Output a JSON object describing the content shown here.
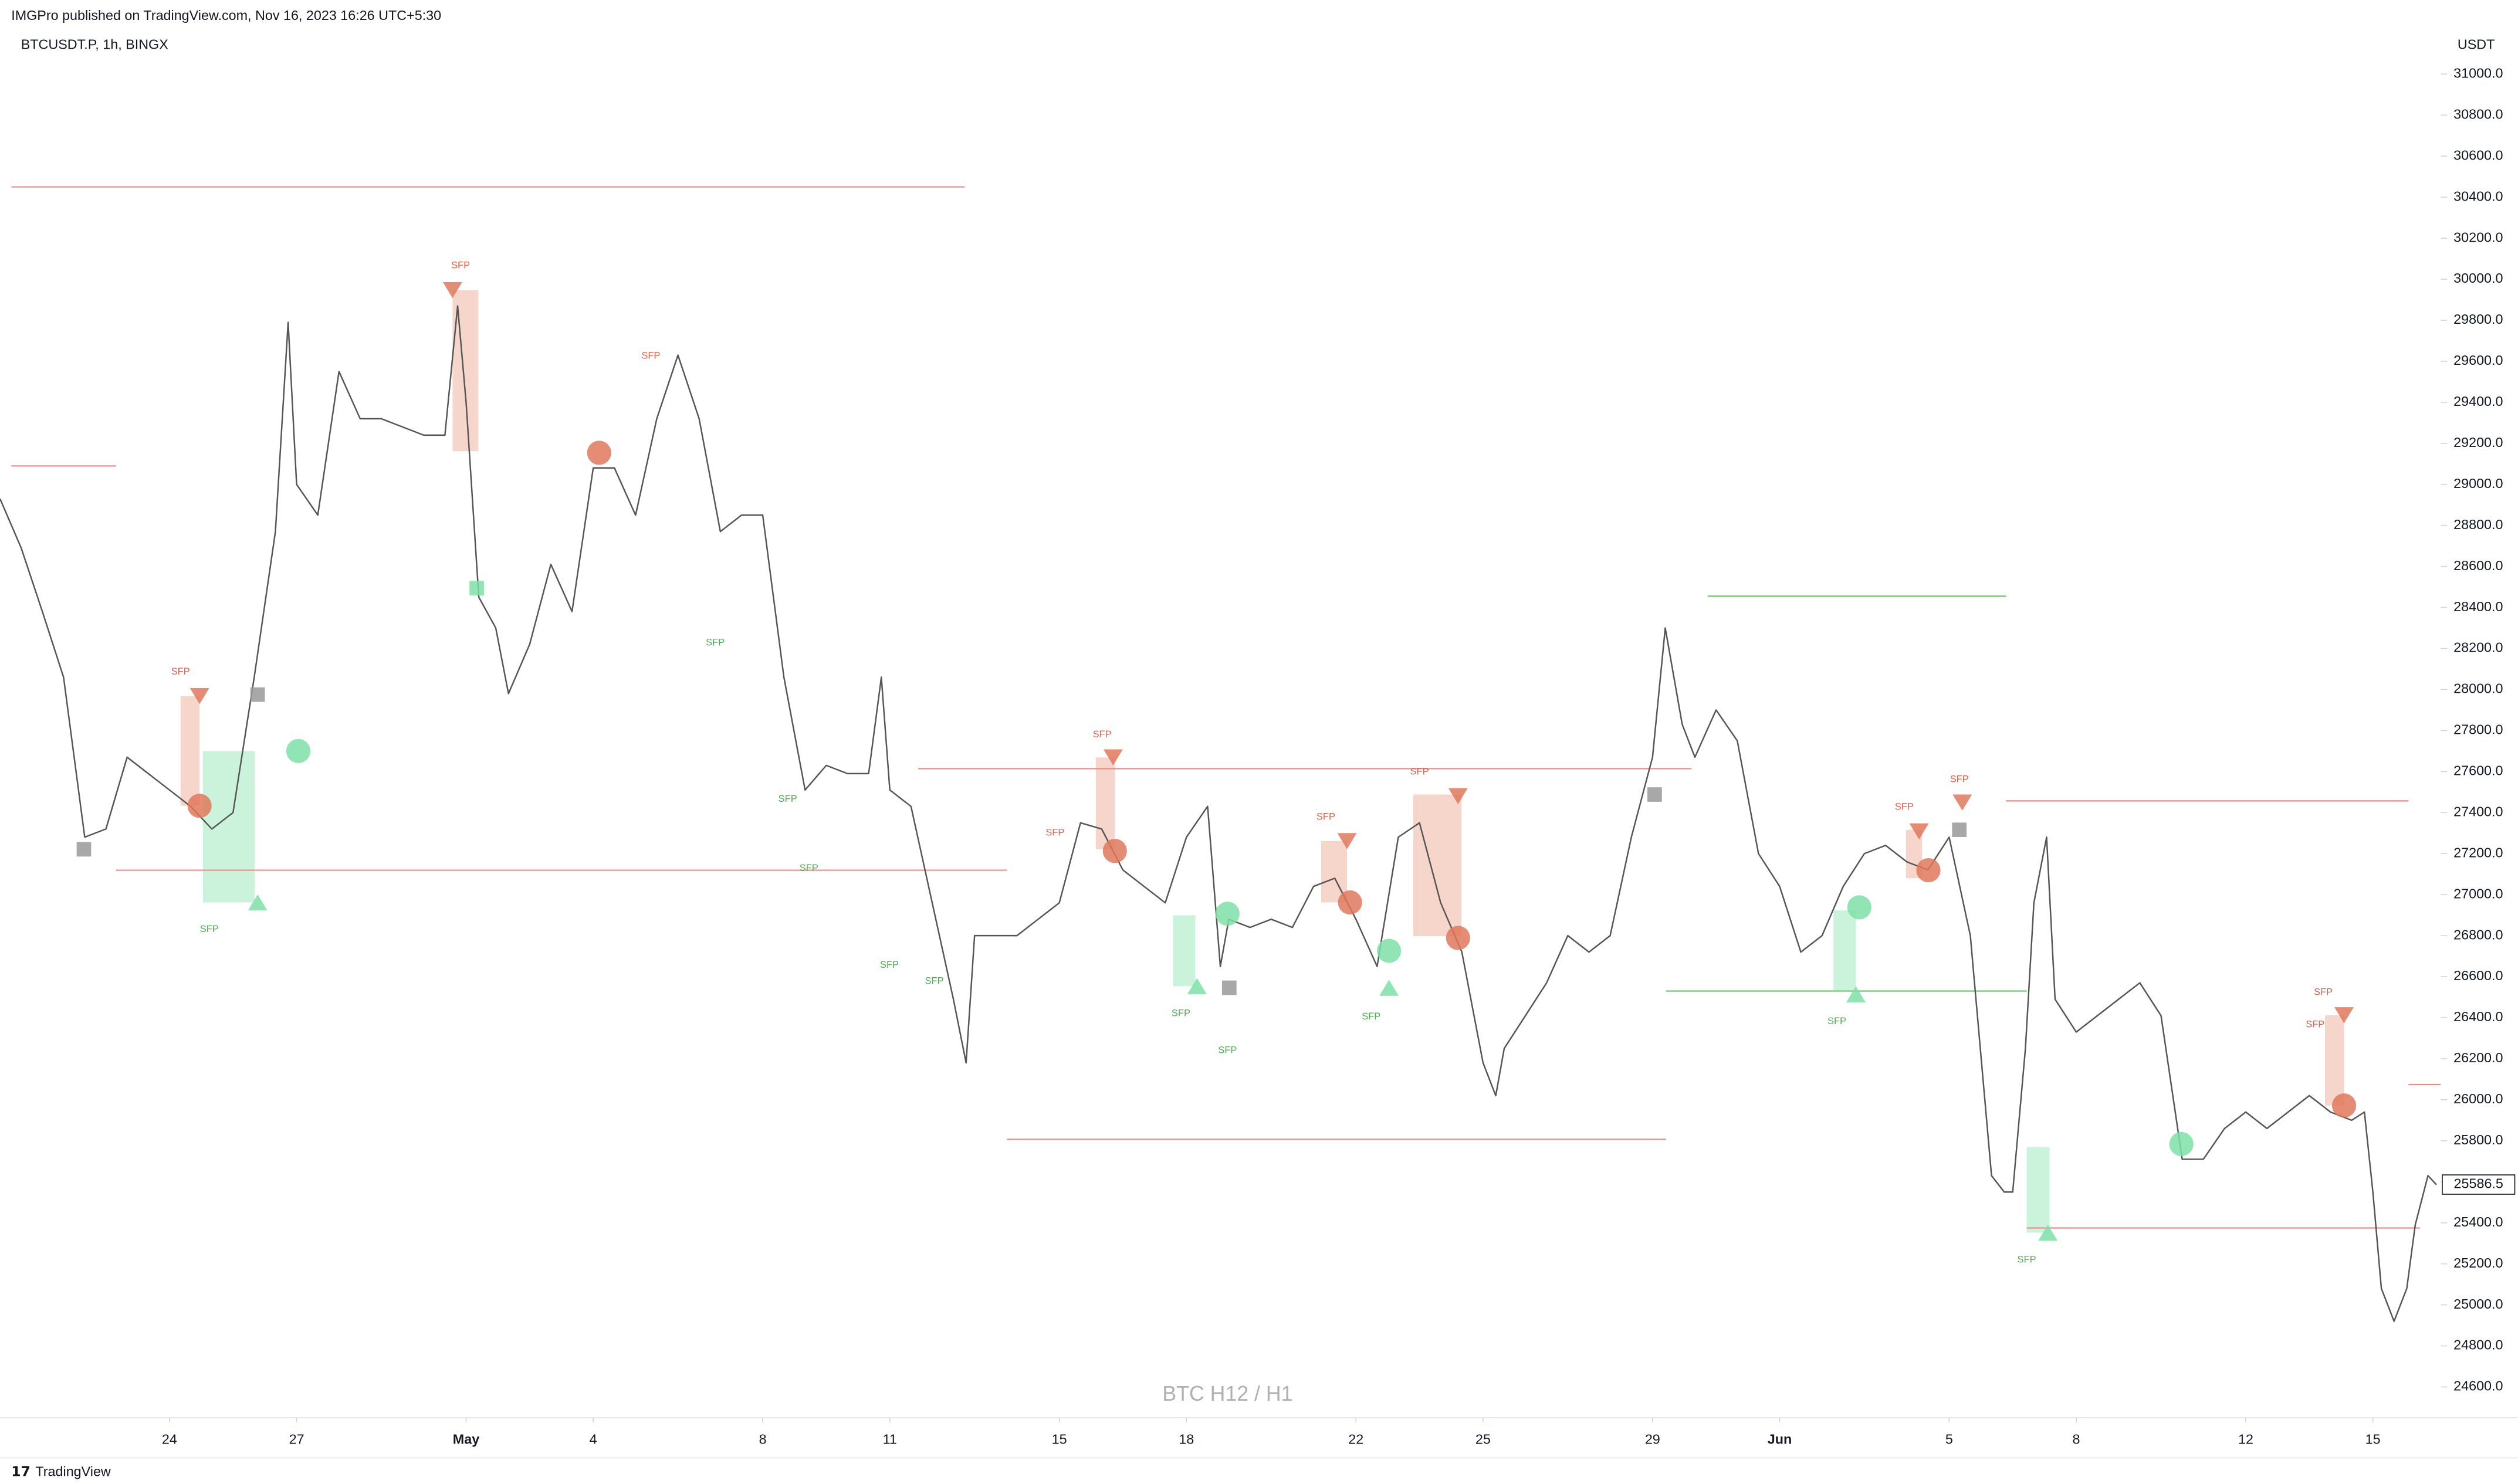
{
  "header": {
    "published": "IMGPro published on TradingView.com, Nov 16, 2023 16:26 UTC+5:30",
    "symbol": "BTCUSDT.P, 1h, BINGX"
  },
  "footer": "TradingView",
  "chart_data": {
    "type": "line",
    "watermark": "BTC H12 / H1",
    "currency": "USDT",
    "color": "#555555",
    "xlim": [
      20,
      77.6
    ],
    "ylim": [
      24450,
      31360
    ],
    "xticks": [
      24,
      27,
      {
        "value": 31,
        "label": "May"
      },
      {
        "value": 34,
        "label": "4"
      },
      {
        "value": 38,
        "label": "8"
      },
      {
        "value": 41,
        "label": "11"
      },
      {
        "value": 45,
        "label": "15"
      },
      {
        "value": 48,
        "label": "18"
      },
      {
        "value": 52,
        "label": "22"
      },
      {
        "value": 55,
        "label": "25"
      },
      {
        "value": 59,
        "label": "29"
      },
      {
        "value": 62,
        "label": "Jun"
      },
      {
        "value": 66,
        "label": "5"
      },
      {
        "value": 69,
        "label": "8"
      },
      {
        "value": 73,
        "label": "12"
      },
      {
        "value": 76,
        "label": "15"
      }
    ],
    "yticks": [
      {
        "value": 31000,
        "label": "31000.0"
      },
      {
        "value": 30800,
        "label": "30800.0"
      },
      {
        "value": 30600,
        "label": "30600.0"
      },
      {
        "value": 30400,
        "label": "30400.0"
      },
      {
        "value": 30200,
        "label": "30200.0"
      },
      {
        "value": 30000,
        "label": "30000.0"
      },
      {
        "value": 29800,
        "label": "29800.0"
      },
      {
        "value": 29600,
        "label": "29600.0"
      },
      {
        "value": 29400,
        "label": "29400.0"
      },
      {
        "value": 29200,
        "label": "29200.0"
      },
      {
        "value": 29000,
        "label": "29000.0"
      },
      {
        "value": 28800,
        "label": "28800.0"
      },
      {
        "value": 28600,
        "label": "28600.0"
      },
      {
        "value": 28400,
        "label": "28400.0"
      },
      {
        "value": 28200,
        "label": "28200.0"
      },
      {
        "value": 28000,
        "label": "28000.0"
      },
      {
        "value": 27800,
        "label": "27800.0"
      },
      {
        "value": 27600,
        "label": "27600.0"
      },
      {
        "value": 27400,
        "label": "27400.0"
      },
      {
        "value": 27200,
        "label": "27200.0"
      },
      {
        "value": 27000,
        "label": "27000.0"
      },
      {
        "value": 26800,
        "label": "26800.0"
      },
      {
        "value": 26600,
        "label": "26600.0"
      },
      {
        "value": 26400,
        "label": "26400.0"
      },
      {
        "value": 26200,
        "label": "26200.0"
      },
      {
        "value": 26000,
        "label": "26000.0"
      },
      {
        "value": 25800,
        "label": "25800.0"
      },
      {
        "value": 25600,
        "label": "25600.0"
      },
      {
        "value": 25400,
        "label": "25400.0"
      },
      {
        "value": 25200,
        "label": "25200.0"
      },
      {
        "value": 25000,
        "label": "25000.0"
      },
      {
        "value": 24800,
        "label": "24800.0"
      },
      {
        "value": 24600,
        "label": "24600.0"
      }
    ],
    "x": [
      20,
      20.5,
      21,
      21.5,
      22,
      22.5,
      23,
      23.5,
      24,
      24.5,
      25,
      25.5,
      26,
      26.5,
      26.8,
      27,
      27.5,
      28,
      28.5,
      29,
      29.5,
      30,
      30.5,
      30.8,
      31,
      31.3,
      31.7,
      32,
      32.5,
      33,
      33.5,
      34,
      34.5,
      35,
      35.5,
      36,
      36.5,
      37,
      37.5,
      38,
      38.5,
      39,
      39.5,
      40,
      40.5,
      40.8,
      41,
      41.5,
      42,
      42.5,
      42.8,
      43,
      43.5,
      44,
      44.5,
      45,
      45.5,
      46,
      46.5,
      47,
      47.5,
      48,
      48.5,
      48.8,
      49,
      49.5,
      50,
      50.5,
      51,
      51.5,
      52,
      52.5,
      53,
      53.5,
      54,
      54.5,
      55,
      55.3,
      55.5,
      56,
      56.5,
      57,
      57.5,
      58,
      58.5,
      59,
      59.3,
      59.7,
      60,
      60.5,
      61,
      61.5,
      62,
      62.5,
      63,
      63.5,
      64,
      64.5,
      65,
      65.5,
      66,
      66.5,
      67,
      67.3,
      67.5,
      67.8,
      68,
      68.3,
      68.5,
      69,
      69.5,
      70,
      70.5,
      71,
      71.5,
      72,
      72.5,
      73,
      73.5,
      74,
      74.5,
      75,
      75.5,
      75.8,
      76,
      76.2,
      76.5,
      76.8,
      77,
      77.3,
      77.5
    ],
    "values": [
      28930,
      28690,
      28380,
      28060,
      27280,
      27320,
      27670,
      27590,
      27510,
      27430,
      27320,
      27400,
      28060,
      28770,
      29790,
      29000,
      28850,
      29550,
      29320,
      29320,
      29280,
      29240,
      29240,
      29870,
      29400,
      28450,
      28300,
      27980,
      28220,
      28610,
      28380,
      29080,
      29080,
      28850,
      29320,
      29630,
      29320,
      28770,
      28850,
      28850,
      28060,
      27510,
      27630,
      27590,
      27590,
      28060,
      27510,
      27430,
      26960,
      26490,
      26180,
      26800,
      26800,
      26800,
      26880,
      26960,
      27350,
      27320,
      27120,
      27040,
      26960,
      27280,
      27430,
      26650,
      26880,
      26840,
      26880,
      26840,
      27040,
      27080,
      26880,
      26650,
      27280,
      27350,
      26960,
      26720,
      26180,
      26020,
      26250,
      26410,
      26570,
      26800,
      26720,
      26800,
      27280,
      27670,
      28300,
      27830,
      27670,
      27900,
      27750,
      27200,
      27040,
      26720,
      26800,
      27040,
      27200,
      27240,
      27160,
      27120,
      27280,
      26800,
      25630,
      25550,
      25550,
      26250,
      26960,
      27280,
      26490,
      26330,
      26410,
      26490,
      26570,
      26410,
      25710,
      25710,
      25860,
      25940,
      25860,
      25940,
      26020,
      25940,
      25900,
      25940,
      25550,
      25080,
      24920,
      25080,
      25390,
      25630,
      25586
    ],
    "last_price": 25586.5,
    "levels": [
      {
        "value": 30450,
        "x": [
          20.27,
          42.77
        ],
        "color": "#ef8a8a"
      },
      {
        "value": 29090,
        "x": [
          20.27,
          22.74
        ],
        "color": "#ef8a8a"
      },
      {
        "value": 27119,
        "x": [
          22.74,
          43.76
        ],
        "color": "#ef8a8a"
      },
      {
        "value": 27614,
        "x": [
          41.67,
          59.92
        ],
        "color": "#ef8a8a"
      },
      {
        "value": 25807,
        "x": [
          43.76,
          59.32
        ],
        "color": "#ef8a8a"
      },
      {
        "value": 28455,
        "x": [
          60.3,
          67.34
        ],
        "color": "#6bbf73"
      },
      {
        "value": 26530,
        "x": [
          59.32,
          67.83
        ],
        "color": "#6bbf73"
      },
      {
        "value": 27457,
        "x": [
          67.34,
          76.84
        ],
        "color": "#ef8a8a"
      },
      {
        "value": 25375,
        "x": [
          67.83,
          77.11
        ],
        "color": "#ef8a8a"
      },
      {
        "value": 26074,
        "x": [
          76.84,
          77.6
        ],
        "color": "#ef8a8a"
      }
    ],
    "zones": [
      {
        "x": [
          30.68,
          31.29
        ],
        "y": [
          29947,
          29162
        ],
        "color": "#e8957c"
      },
      {
        "x": [
          24.26,
          24.71
        ],
        "y": [
          27968,
          27433
        ],
        "color": "#e8957c"
      },
      {
        "x": [
          24.79,
          26.01
        ],
        "y": [
          27700,
          26962
        ],
        "color": "#7ee0a8"
      },
      {
        "x": [
          45.86,
          46.31
        ],
        "y": [
          27669,
          27221
        ],
        "color": "#e8957c"
      },
      {
        "x": [
          51.18,
          51.79
        ],
        "y": [
          27261,
          26962
        ],
        "color": "#e8957c"
      },
      {
        "x": [
          53.35,
          54.49
        ],
        "y": [
          27488,
          26797
        ],
        "color": "#e8957c"
      },
      {
        "x": [
          47.68,
          48.21
        ],
        "y": [
          26899,
          26554
        ],
        "color": "#7ee0a8"
      },
      {
        "x": [
          63.27,
          63.8
        ],
        "y": [
          26923,
          26530
        ],
        "color": "#7ee0a8"
      },
      {
        "x": [
          67.83,
          68.37
        ],
        "y": [
          25768,
          25352
        ],
        "color": "#7ee0a8"
      },
      {
        "x": [
          74.87,
          75.32
        ],
        "y": [
          26412,
          25972
        ],
        "color": "#e8957c"
      },
      {
        "x": [
          64.98,
          65.36
        ],
        "y": [
          27316,
          27080
        ],
        "color": "#e8957c"
      }
    ],
    "markers": [
      {
        "shape": "circle",
        "x": 24.71,
        "y": 27433,
        "color": "#e0785c"
      },
      {
        "shape": "circle",
        "x": 27.04,
        "y": 27700,
        "color": "#7ee0a8"
      },
      {
        "shape": "circle",
        "x": 34.14,
        "y": 29154,
        "color": "#e0785c"
      },
      {
        "shape": "circle",
        "x": 46.31,
        "y": 27213,
        "color": "#e0785c"
      },
      {
        "shape": "circle",
        "x": 48.97,
        "y": 26907,
        "color": "#7ee0a8"
      },
      {
        "shape": "circle",
        "x": 51.86,
        "y": 26962,
        "color": "#e0785c"
      },
      {
        "shape": "circle",
        "x": 52.78,
        "y": 26726,
        "color": "#7ee0a8"
      },
      {
        "shape": "circle",
        "x": 54.41,
        "y": 26789,
        "color": "#e0785c"
      },
      {
        "shape": "circle",
        "x": 63.88,
        "y": 26938,
        "color": "#7ee0a8"
      },
      {
        "shape": "circle",
        "x": 65.51,
        "y": 27119,
        "color": "#e0785c"
      },
      {
        "shape": "circle",
        "x": 71.48,
        "y": 25784,
        "color": "#7ee0a8"
      },
      {
        "shape": "circle",
        "x": 75.32,
        "y": 25972,
        "color": "#e0785c"
      },
      {
        "shape": "down",
        "x": 24.71,
        "y": 27968,
        "color": "#e0785c"
      },
      {
        "shape": "down",
        "x": 30.68,
        "y": 29947,
        "color": "#e0785c"
      },
      {
        "shape": "down",
        "x": 46.27,
        "y": 27669,
        "color": "#e0785c"
      },
      {
        "shape": "down",
        "x": 51.79,
        "y": 27261,
        "color": "#e0785c"
      },
      {
        "shape": "down",
        "x": 54.41,
        "y": 27480,
        "color": "#e0785c"
      },
      {
        "shape": "down",
        "x": 65.29,
        "y": 27308,
        "color": "#e0785c"
      },
      {
        "shape": "down",
        "x": 66.31,
        "y": 27449,
        "color": "#e0785c"
      },
      {
        "shape": "down",
        "x": 75.32,
        "y": 26412,
        "color": "#e0785c"
      },
      {
        "shape": "up",
        "x": 26.08,
        "y": 26962,
        "color": "#7ee0a8"
      },
      {
        "shape": "up",
        "x": 48.25,
        "y": 26554,
        "color": "#7ee0a8"
      },
      {
        "shape": "up",
        "x": 52.78,
        "y": 26546,
        "color": "#7ee0a8"
      },
      {
        "shape": "up",
        "x": 63.8,
        "y": 26514,
        "color": "#7ee0a8"
      },
      {
        "shape": "up",
        "x": 68.33,
        "y": 25352,
        "color": "#7ee0a8"
      },
      {
        "shape": "square",
        "x": 21.98,
        "y": 27221,
        "color": "#999999"
      },
      {
        "shape": "square",
        "x": 26.08,
        "y": 27975,
        "color": "#999999"
      },
      {
        "shape": "square",
        "x": 49.01,
        "y": 26546,
        "color": "#999999"
      },
      {
        "shape": "square",
        "x": 59.05,
        "y": 27488,
        "color": "#999999"
      },
      {
        "shape": "square",
        "x": 66.24,
        "y": 27316,
        "color": "#999999"
      },
      {
        "shape": "square",
        "x": 31.25,
        "y": 28494,
        "color": "#7ee0a8"
      }
    ],
    "annotations": [
      {
        "text": "SFP",
        "x": 30.87,
        "y": 30065,
        "color": "#e0604a"
      },
      {
        "text": "SFP",
        "x": 24.26,
        "y": 28085,
        "color": "#e0604a"
      },
      {
        "text": "SFP",
        "x": 35.36,
        "y": 29625,
        "color": "#e0604a"
      },
      {
        "text": "SFP",
        "x": 24.94,
        "y": 26830,
        "color": "#4caf50"
      },
      {
        "text": "SFP",
        "x": 36.88,
        "y": 28227,
        "color": "#4caf50"
      },
      {
        "text": "SFP",
        "x": 38.59,
        "y": 27465,
        "color": "#4caf50"
      },
      {
        "text": "SFP",
        "x": 39.09,
        "y": 27127,
        "color": "#4caf50"
      },
      {
        "text": "SFP",
        "x": 40.99,
        "y": 26656,
        "color": "#4caf50"
      },
      {
        "text": "SFP",
        "x": 42.05,
        "y": 26577,
        "color": "#4caf50"
      },
      {
        "text": "SFP",
        "x": 46.01,
        "y": 27779,
        "color": "#e0604a"
      },
      {
        "text": "SFP",
        "x": 44.9,
        "y": 27300,
        "color": "#e0604a"
      },
      {
        "text": "SFP",
        "x": 47.87,
        "y": 26420,
        "color": "#4caf50"
      },
      {
        "text": "SFP",
        "x": 48.97,
        "y": 26240,
        "color": "#4caf50"
      },
      {
        "text": "SFP",
        "x": 51.29,
        "y": 27378,
        "color": "#e0604a"
      },
      {
        "text": "SFP",
        "x": 52.36,
        "y": 26404,
        "color": "#4caf50"
      },
      {
        "text": "SFP",
        "x": 53.5,
        "y": 27598,
        "color": "#e0604a"
      },
      {
        "text": "SFP",
        "x": 63.35,
        "y": 26381,
        "color": "#4caf50"
      },
      {
        "text": "SFP",
        "x": 64.94,
        "y": 27426,
        "color": "#e0604a"
      },
      {
        "text": "SFP",
        "x": 66.24,
        "y": 27560,
        "color": "#e0604a"
      },
      {
        "text": "SFP",
        "x": 67.83,
        "y": 25218,
        "color": "#4caf50"
      },
      {
        "text": "SFP",
        "x": 74.83,
        "y": 26522,
        "color": "#e0604a"
      },
      {
        "text": "SFP",
        "x": 74.64,
        "y": 26365,
        "color": "#e0604a"
      }
    ]
  }
}
